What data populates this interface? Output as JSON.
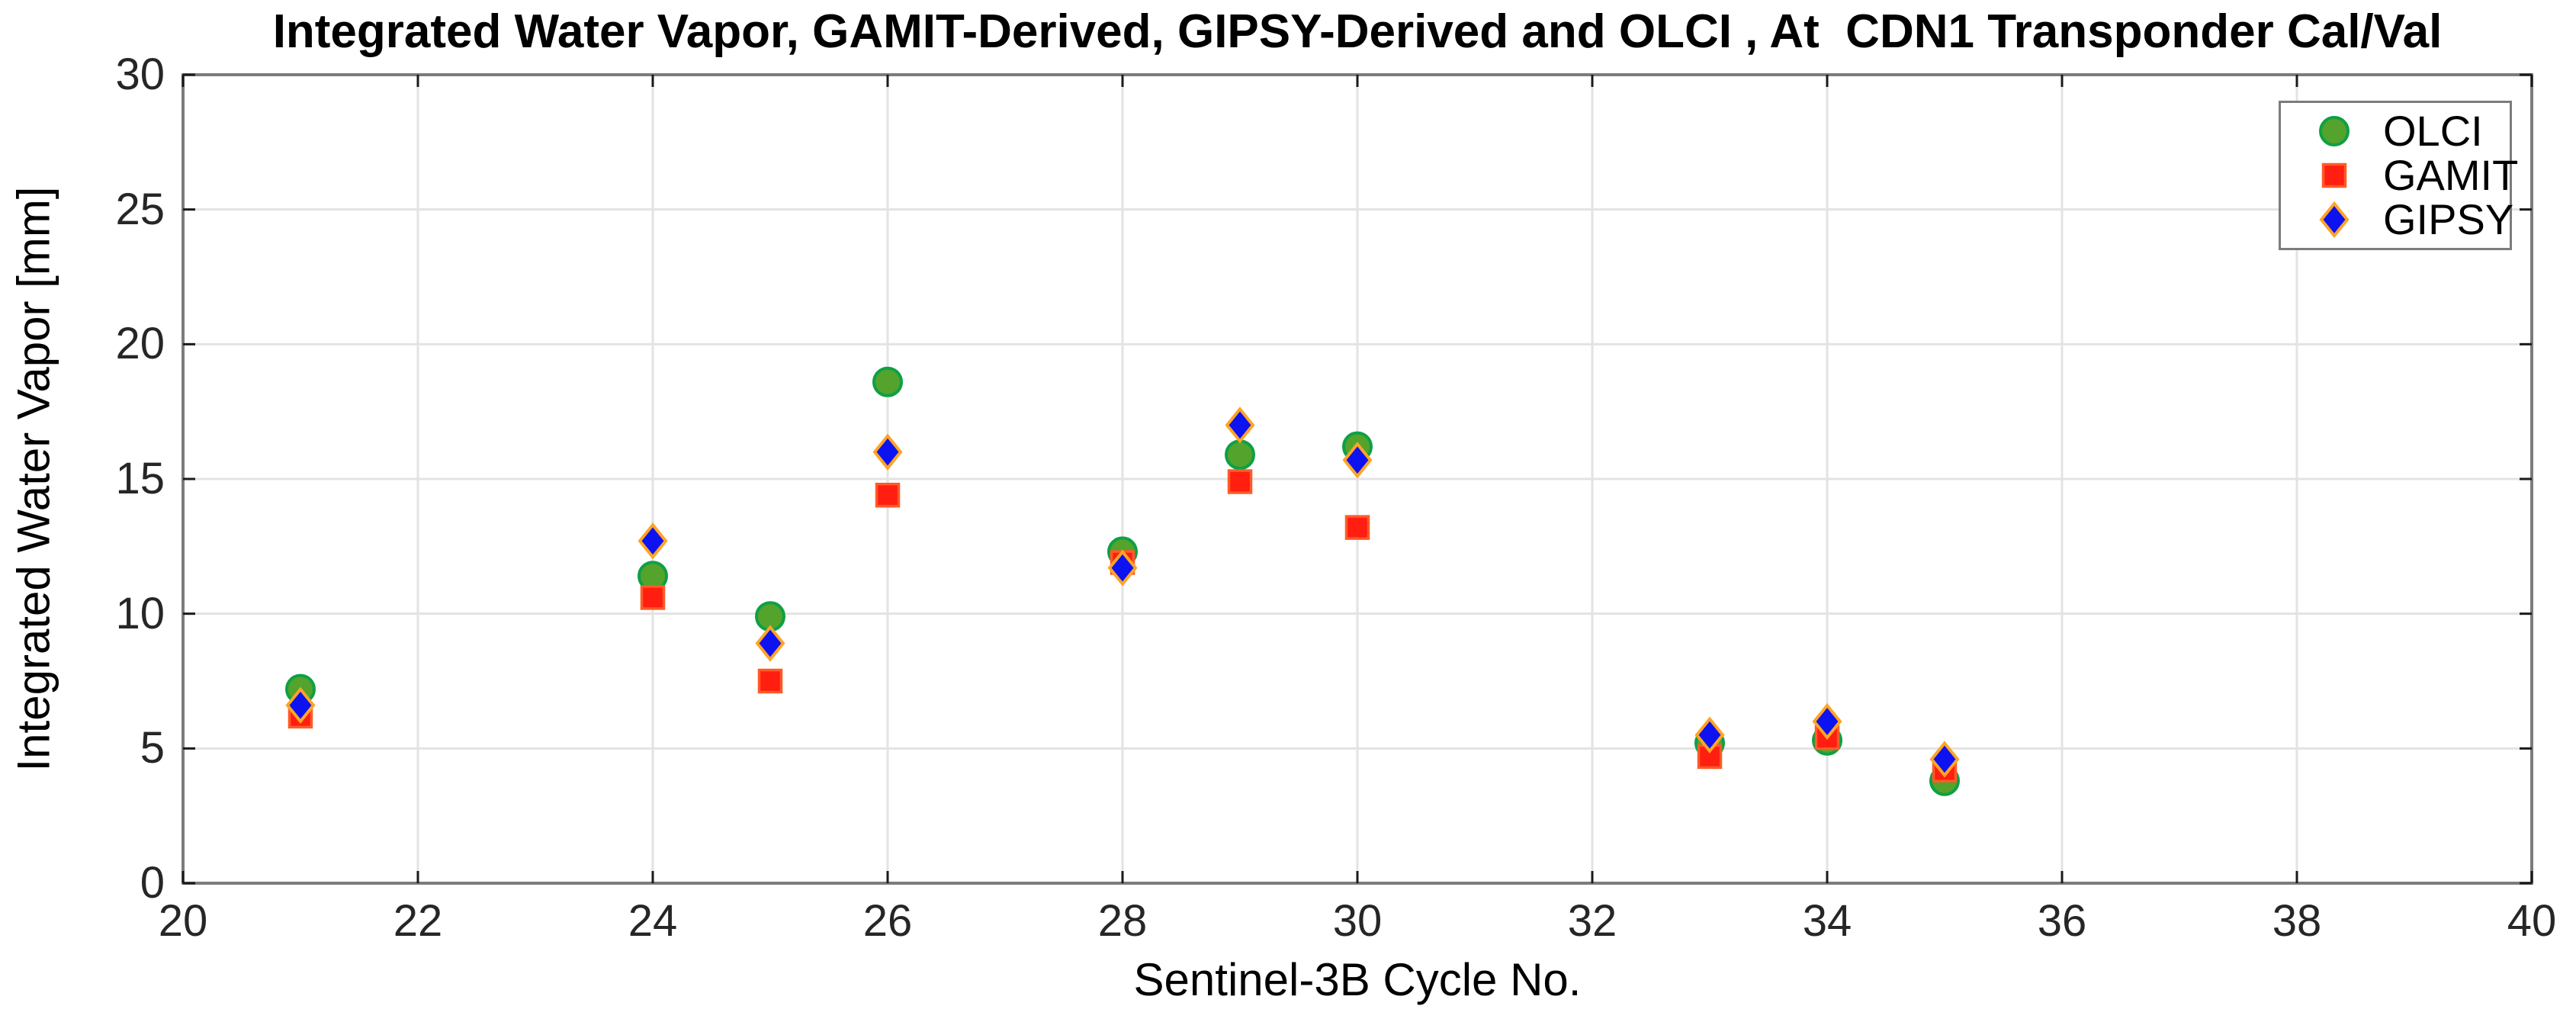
{
  "chart_data": {
    "type": "scatter",
    "title": "Integrated Water Vapor, GAMIT-Derived, GIPSY-Derived and OLCI , At  CDN1 Transponder Cal/Val",
    "xlabel": "Sentinel-3B Cycle No.",
    "ylabel": "Integrated Water Vapor [mm]",
    "xlim": [
      20,
      40
    ],
    "ylim": [
      0,
      30
    ],
    "xticks": [
      20,
      22,
      24,
      26,
      28,
      30,
      32,
      34,
      36,
      38,
      40
    ],
    "yticks": [
      0,
      5,
      10,
      15,
      20,
      25,
      30
    ],
    "grid": true,
    "legend_position": "top-right",
    "x": [
      21,
      24,
      25,
      26,
      28,
      29,
      30,
      33,
      34,
      35
    ],
    "series": [
      {
        "name": "OLCI",
        "marker": "circle",
        "fill": "#54A32C",
        "edge": "#0EA044",
        "values": [
          7.2,
          11.4,
          9.9,
          18.6,
          12.3,
          15.9,
          16.2,
          5.2,
          5.3,
          3.8
        ]
      },
      {
        "name": "GAMIT",
        "marker": "square",
        "fill": "#FF1E0F",
        "edge": "#FF5A28",
        "values": [
          6.2,
          10.6,
          7.5,
          14.4,
          11.9,
          14.9,
          13.2,
          4.7,
          5.4,
          4.2
        ]
      },
      {
        "name": "GIPSY",
        "marker": "diamond",
        "fill": "#0D12F0",
        "edge": "#FFA426",
        "values": [
          6.6,
          12.7,
          8.9,
          16.0,
          11.7,
          17.0,
          15.7,
          5.5,
          6.0,
          4.6
        ]
      }
    ],
    "colors": {
      "background": "#FFFFFF",
      "grid": "#E3E3E3",
      "frame": "#7C7C7C",
      "tick": "#1A1A1A",
      "tick_text": "#262626",
      "text": "#000000"
    }
  }
}
